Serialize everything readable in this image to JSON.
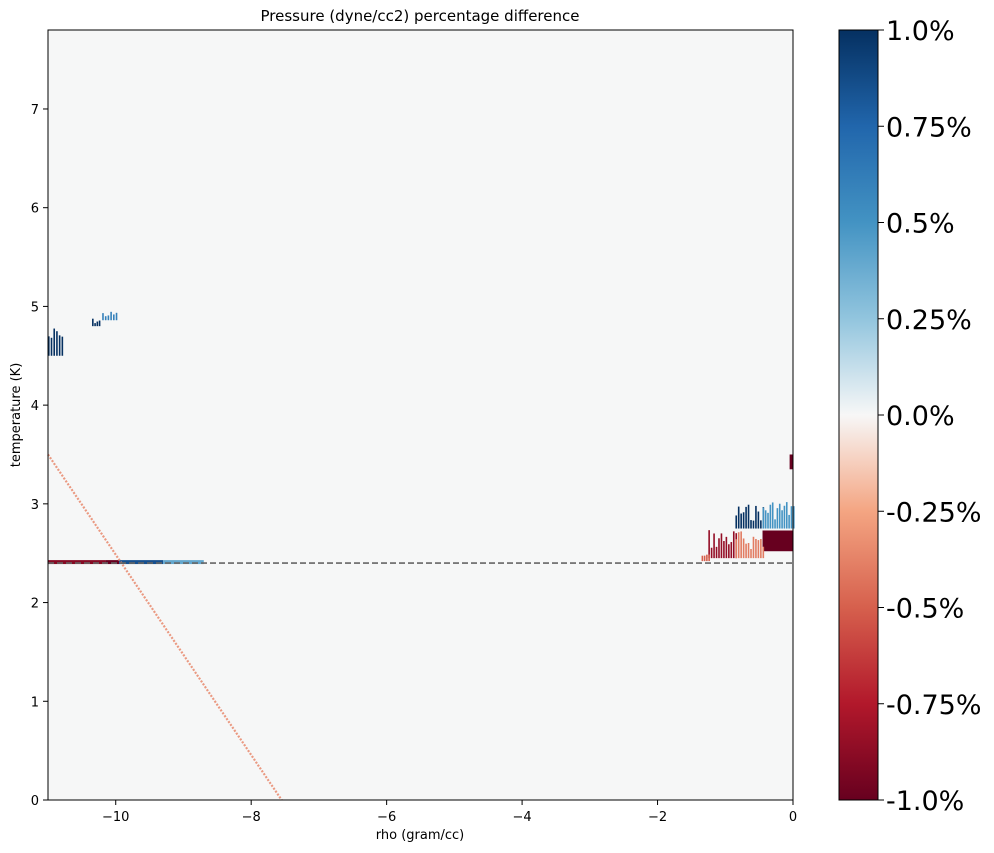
{
  "chart_data": {
    "type": "heatmap",
    "title": "Pressure (dyne/cc2) percentage difference",
    "xlabel": "rho (gram/cc)",
    "ylabel": "temperature (K)",
    "xlim": [
      -11,
      0
    ],
    "ylim": [
      0,
      7.8
    ],
    "x_ticks": [
      {
        "value": -10,
        "label": "−10"
      },
      {
        "value": -8,
        "label": "−8"
      },
      {
        "value": -6,
        "label": "−6"
      },
      {
        "value": -4,
        "label": "−4"
      },
      {
        "value": -2,
        "label": "−2"
      },
      {
        "value": 0,
        "label": "0"
      }
    ],
    "y_ticks": [
      {
        "value": 0,
        "label": "0"
      },
      {
        "value": 1,
        "label": "1"
      },
      {
        "value": 2,
        "label": "2"
      },
      {
        "value": 3,
        "label": "3"
      },
      {
        "value": 4,
        "label": "4"
      },
      {
        "value": 5,
        "label": "5"
      },
      {
        "value": 6,
        "label": "6"
      },
      {
        "value": 7,
        "label": "7"
      }
    ],
    "colorbar": {
      "colormap": "RdBu",
      "min": -1.0,
      "max": 1.0,
      "ticks": [
        {
          "value": 1.0,
          "label": "1.0%"
        },
        {
          "value": 0.75,
          "label": "0.75%"
        },
        {
          "value": 0.5,
          "label": "0.5%"
        },
        {
          "value": 0.25,
          "label": "0.25%"
        },
        {
          "value": 0.0,
          "label": "0.0%"
        },
        {
          "value": -0.25,
          "label": "-0.25%"
        },
        {
          "value": -0.5,
          "label": "-0.5%"
        },
        {
          "value": -0.75,
          "label": "-0.75%"
        },
        {
          "value": -1.0,
          "label": "-1.0%"
        }
      ],
      "stops": [
        {
          "value": 1.0,
          "color": "#053061"
        },
        {
          "value": 0.75,
          "color": "#2166ac"
        },
        {
          "value": 0.5,
          "color": "#4393c3"
        },
        {
          "value": 0.25,
          "color": "#92c5de"
        },
        {
          "value": 0.0,
          "color": "#f7f7f7"
        },
        {
          "value": -0.25,
          "color": "#f4a582"
        },
        {
          "value": -0.5,
          "color": "#d6604d"
        },
        {
          "value": -0.75,
          "color": "#b2182b"
        },
        {
          "value": -1.0,
          "color": "#67001f"
        }
      ]
    },
    "background_value": 0.0,
    "reference_line": {
      "y": 2.4,
      "style": "dashed",
      "color": "#666666"
    },
    "features": [
      {
        "kind": "band",
        "x": [
          -11,
          -10.15
        ],
        "y": [
          2.39,
          2.43
        ],
        "value": -0.9
      },
      {
        "kind": "band",
        "x": [
          -10.15,
          -9.95
        ],
        "y": [
          2.39,
          2.43
        ],
        "value": -1.0
      },
      {
        "kind": "band",
        "x": [
          -9.95,
          -9.3
        ],
        "y": [
          2.39,
          2.43
        ],
        "value": 0.85
      },
      {
        "kind": "band",
        "x": [
          -9.3,
          -8.7
        ],
        "y": [
          2.39,
          2.43
        ],
        "value": 0.4
      },
      {
        "kind": "streak",
        "x": [
          -11,
          -7.55
        ],
        "y": [
          3.5,
          0
        ],
        "value": -0.35
      },
      {
        "kind": "spikes",
        "x": [
          -11,
          -10.8
        ],
        "y": [
          4.5,
          4.8
        ],
        "value": 1.0
      },
      {
        "kind": "spikes",
        "x": [
          -10.35,
          -10.25
        ],
        "y": [
          4.8,
          4.88
        ],
        "value": 1.0
      },
      {
        "kind": "spikes",
        "x": [
          -10.2,
          -10.0
        ],
        "y": [
          4.86,
          4.95
        ],
        "value": 0.6
      },
      {
        "kind": "patch",
        "x": [
          -0.05,
          0
        ],
        "y": [
          3.35,
          3.5
        ],
        "value": -1.0
      },
      {
        "kind": "spikes",
        "x": [
          -0.85,
          -0.45
        ],
        "y": [
          2.75,
          3.0
        ],
        "value": 1.0
      },
      {
        "kind": "spikes",
        "x": [
          -0.45,
          0
        ],
        "y": [
          2.75,
          3.05
        ],
        "value": 0.5
      },
      {
        "kind": "patch",
        "x": [
          -0.45,
          0
        ],
        "y": [
          2.52,
          2.73
        ],
        "value": -1.0
      },
      {
        "kind": "spikes",
        "x": [
          -1.25,
          -0.85
        ],
        "y": [
          2.45,
          2.75
        ],
        "value": -0.85
      },
      {
        "kind": "spikes",
        "x": [
          -0.85,
          -0.45
        ],
        "y": [
          2.45,
          2.73
        ],
        "value": -0.4
      },
      {
        "kind": "spikes",
        "x": [
          -1.35,
          -1.25
        ],
        "y": [
          2.42,
          2.5
        ],
        "value": -0.5
      }
    ]
  }
}
